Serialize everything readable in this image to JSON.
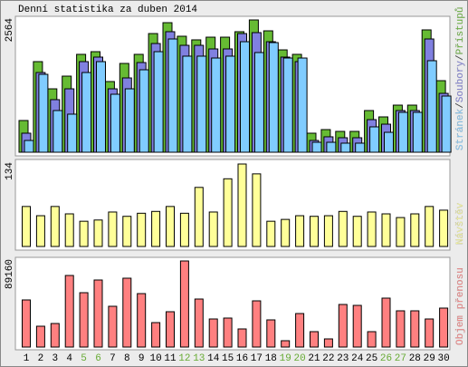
{
  "chart_data": [
    {
      "type": "bar",
      "title": "Denní statistika za duben 2014",
      "ylim": [
        0,
        2564
      ],
      "yticks": [
        2564
      ],
      "legend_separator": "/",
      "series": [
        {
          "name": "Přístupů",
          "color": "#66bb33",
          "values": [
            615,
            1756,
            1229,
            1475,
            1897,
            1949,
            1370,
            1721,
            1897,
            2300,
            2511,
            2248,
            2178,
            2230,
            2230,
            2336,
            2564,
            2353,
            1984,
            1897,
            369,
            439,
            404,
            404,
            808,
            685,
            913,
            913,
            2371,
            1387
          ]
        },
        {
          "name": "Soubory",
          "color": "#8080e0",
          "values": [
            369,
            1545,
            1019,
            1229,
            1756,
            1844,
            1229,
            1440,
            1738,
            2107,
            2336,
            2072,
            2072,
            2002,
            2002,
            2300,
            2318,
            2142,
            1844,
            1756,
            228,
            299,
            281,
            281,
            632,
            544,
            808,
            808,
            2195,
            1141
          ]
        },
        {
          "name": "Stránek",
          "color": "#80ccff",
          "values": [
            228,
            1510,
            808,
            738,
            1545,
            1756,
            1124,
            1229,
            1598,
            1949,
            2195,
            1862,
            1862,
            1826,
            1862,
            2142,
            1932,
            2125,
            1826,
            1826,
            193,
            193,
            176,
            176,
            492,
            386,
            773,
            773,
            1774,
            1089
          ]
        }
      ]
    },
    {
      "type": "bar",
      "ylim": [
        0,
        134
      ],
      "yticks": [
        134
      ],
      "series": [
        {
          "name": "Návštěv",
          "color": "#ffff99",
          "values": [
            65,
            50,
            65,
            53,
            41,
            43,
            56,
            49,
            54,
            57,
            65,
            54,
            96,
            56,
            110,
            134,
            118,
            41,
            44,
            50,
            49,
            50,
            57,
            49,
            56,
            53,
            47,
            53,
            65,
            59
          ]
        }
      ]
    },
    {
      "type": "bar",
      "ylim": [
        0,
        89160
      ],
      "yticks": [
        89160
      ],
      "series": [
        {
          "name": "Objem přenosu",
          "color": "#ff8080",
          "values": [
            48806,
            21586,
            24402,
            74144,
            56312,
            69452,
            42234,
            71328,
            55373,
            25340,
            36602,
            89160,
            49742,
            29094,
            30033,
            18771,
            47865,
            28156,
            6570,
            34726,
            15955,
            8447,
            44111,
            43172,
            15955,
            50681,
            37541,
            37541,
            29094,
            40357
          ]
        }
      ],
      "categories": [
        "1",
        "2",
        "3",
        "4",
        "5",
        "6",
        "7",
        "8",
        "9",
        "10",
        "11",
        "12",
        "13",
        "14",
        "15",
        "16",
        "17",
        "18",
        "19",
        "20",
        "21",
        "22",
        "23",
        "24",
        "25",
        "26",
        "27",
        "28",
        "29",
        "30"
      ],
      "category_colors": [
        "#000000",
        "#000000",
        "#000000",
        "#000000",
        "#66aa33",
        "#66aa33",
        "#000000",
        "#000000",
        "#000000",
        "#000000",
        "#000000",
        "#66aa33",
        "#66aa33",
        "#000000",
        "#000000",
        "#000000",
        "#000000",
        "#000000",
        "#66aa33",
        "#66aa33",
        "#000000",
        "#000000",
        "#000000",
        "#000000",
        "#000000",
        "#66aa33",
        "#66aa33",
        "#000000",
        "#000000",
        "#000000"
      ]
    }
  ]
}
